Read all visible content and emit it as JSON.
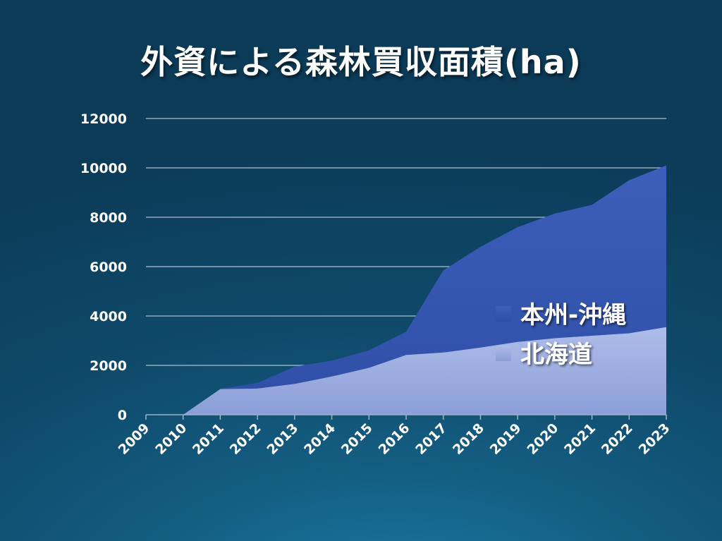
{
  "chart_data": {
    "type": "area",
    "stacked": true,
    "title": "外資による森林買収面積(ha)",
    "x": [
      "2009",
      "2010",
      "2011",
      "2012",
      "2013",
      "2014",
      "2015",
      "2016",
      "2017",
      "2018",
      "2019",
      "2020",
      "2021",
      "2022",
      "2023"
    ],
    "ylim": [
      0,
      12000
    ],
    "yticks": [
      0,
      2000,
      4000,
      6000,
      8000,
      10000,
      12000
    ],
    "grid": true,
    "legend_position": "right-inside",
    "series": [
      {
        "name": "北海道",
        "color": "#a3b4e6",
        "values": [
          0,
          0,
          1040,
          1060,
          1250,
          1550,
          1900,
          2420,
          2520,
          2720,
          2950,
          3100,
          3200,
          3300,
          3550
        ]
      },
      {
        "name": "本州-沖縄",
        "color": "#3858b0",
        "values": [
          0,
          0,
          10,
          230,
          700,
          640,
          710,
          940,
          3330,
          4080,
          4650,
          5050,
          5300,
          6200,
          6550
        ]
      }
    ]
  }
}
